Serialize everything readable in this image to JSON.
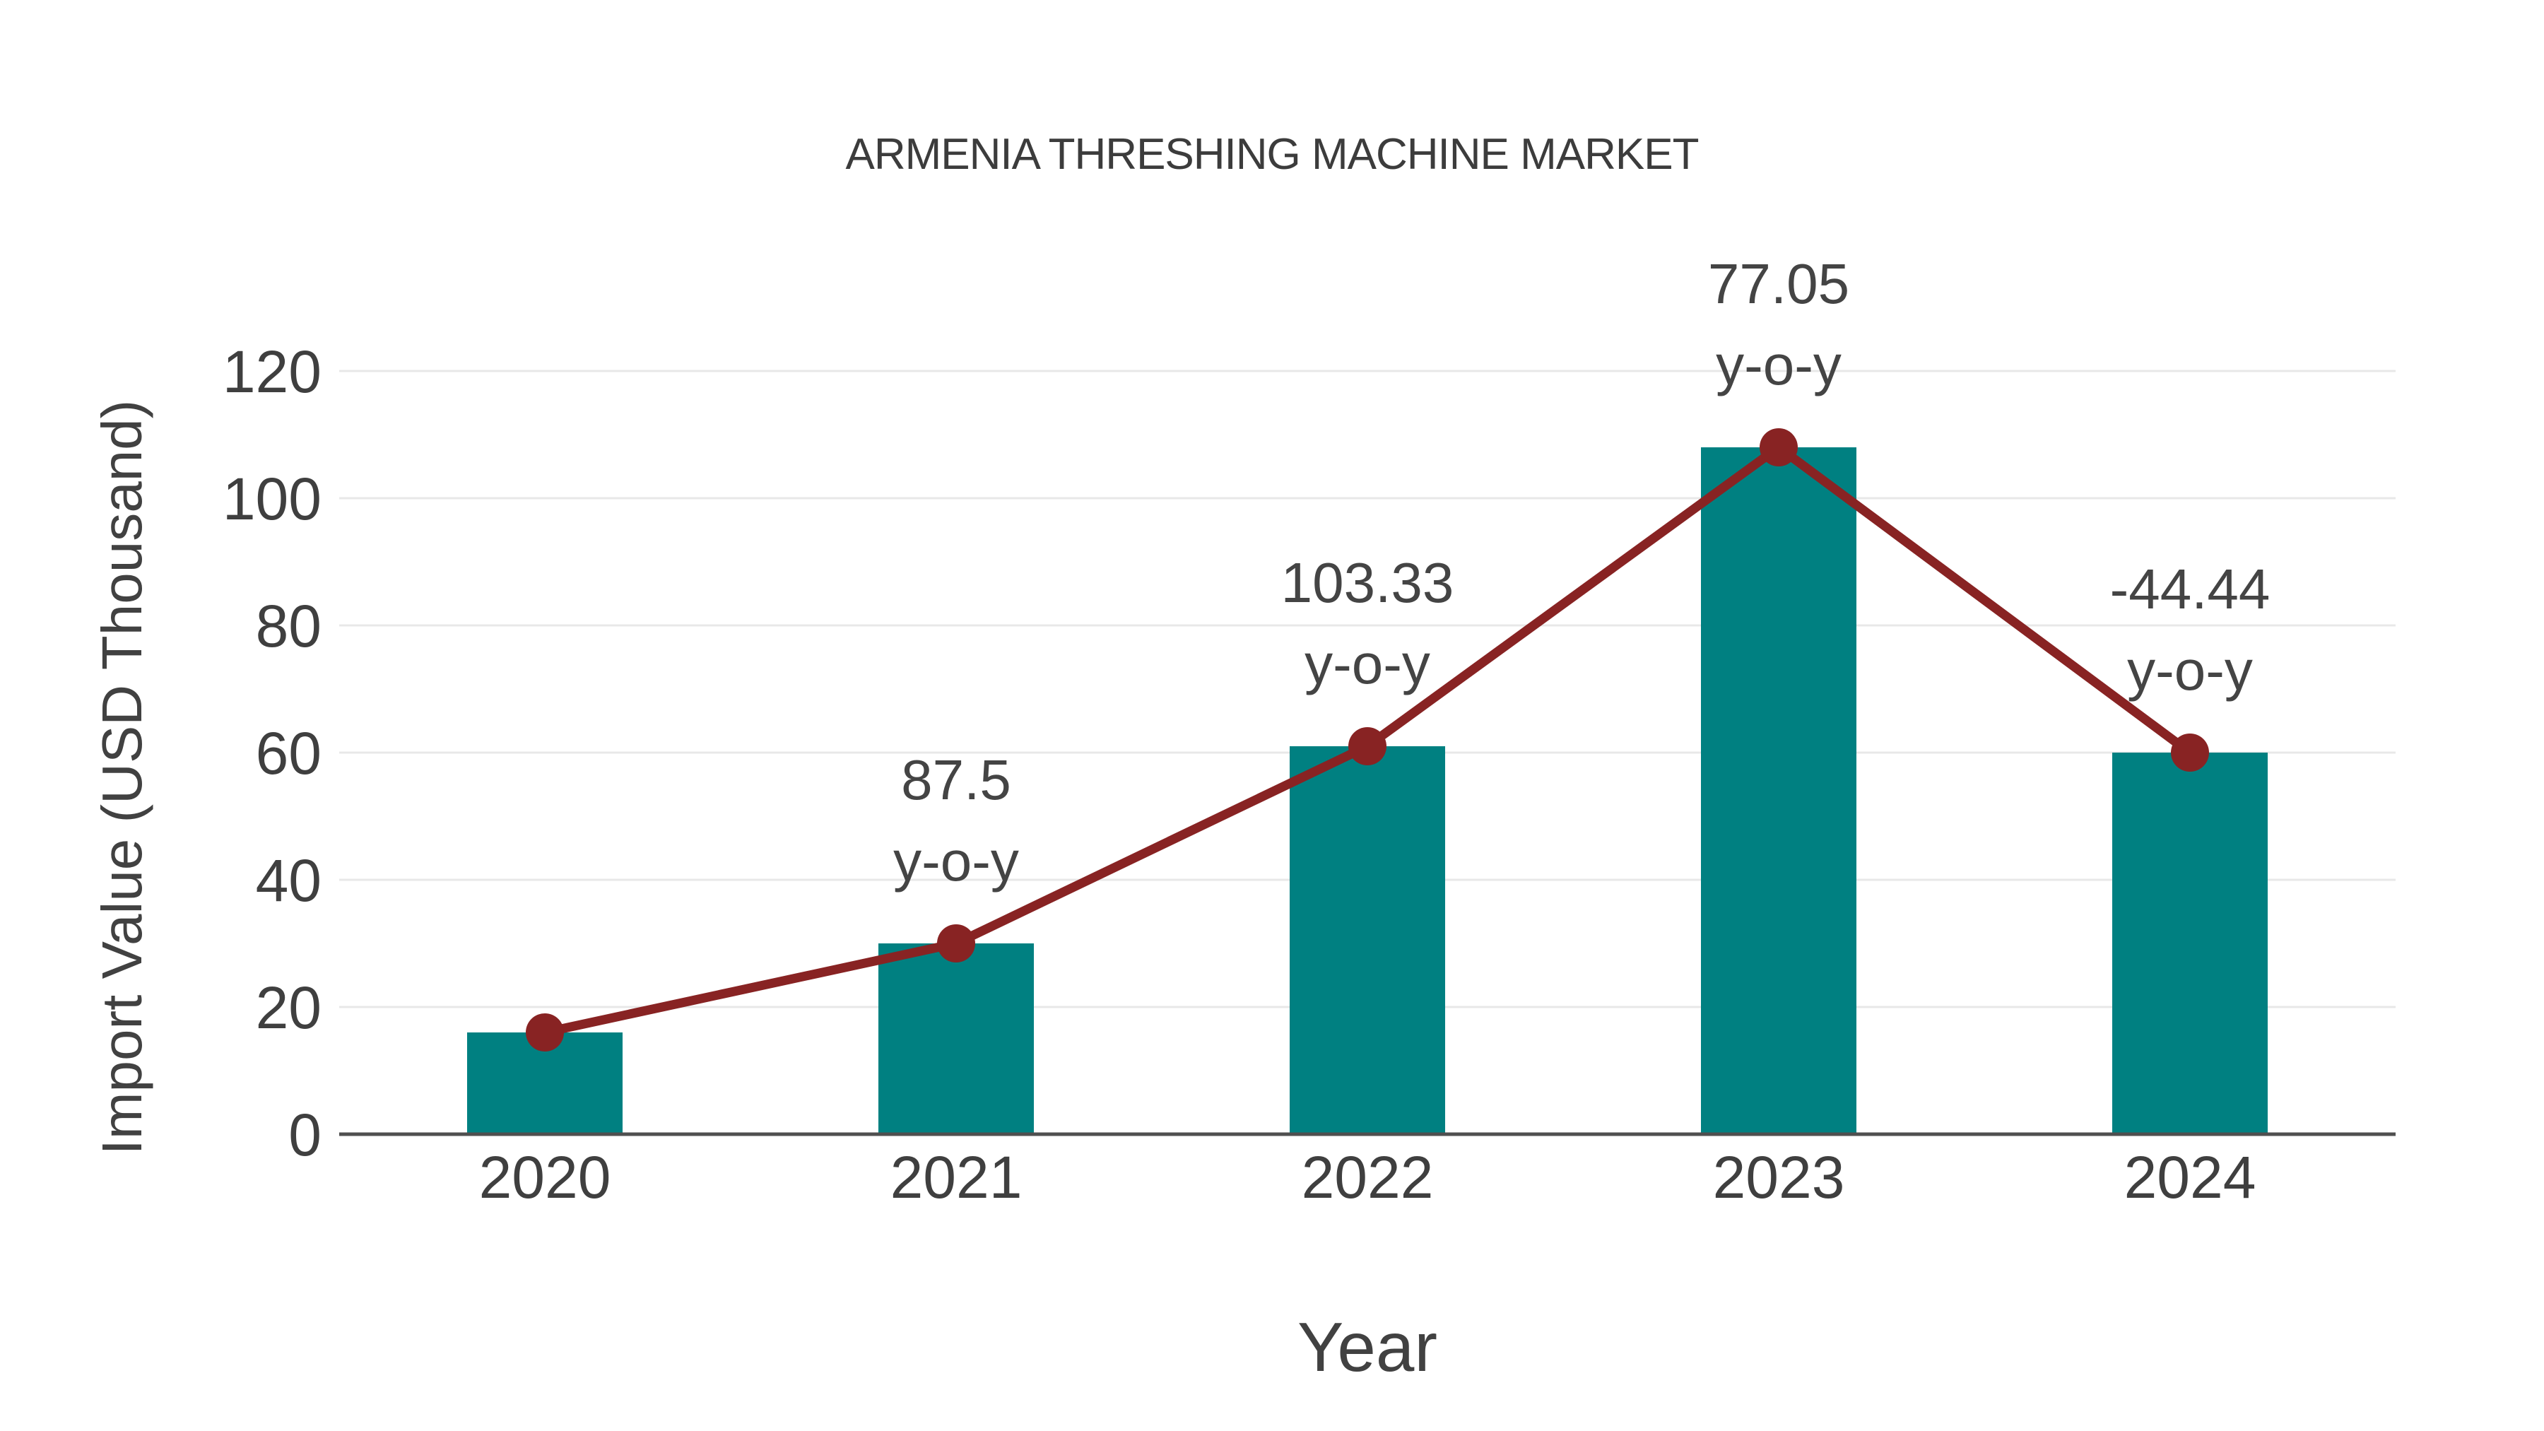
{
  "chart_data": {
    "type": "bar+line",
    "title": "ARMENIA THRESHING MACHINE MARKET",
    "xlabel": "Year",
    "ylabel": "Import Value (USD Thousand)",
    "categories": [
      "2020",
      "2021",
      "2022",
      "2023",
      "2024"
    ],
    "bar_values": [
      16,
      30,
      61,
      108,
      60
    ],
    "line_values": [
      16,
      30,
      61,
      108,
      60
    ],
    "annotations": [
      {
        "category": "2021",
        "value": "87.5",
        "suffix": "y-o-y"
      },
      {
        "category": "2022",
        "value": "103.33",
        "suffix": "y-o-y"
      },
      {
        "category": "2023",
        "value": "77.05",
        "suffix": "y-o-y"
      },
      {
        "category": "2024",
        "value": "-44.44",
        "suffix": "y-o-y"
      }
    ],
    "ylim": [
      0,
      120
    ],
    "yticks": [
      0,
      20,
      40,
      60,
      80,
      100,
      120
    ],
    "grid": true,
    "legend_position": "none",
    "colors": {
      "bar": "#008081",
      "line": "#882323",
      "marker": "#882323",
      "grid": "#e8e8e8",
      "axis": "#4f4f4f",
      "text": "#3f3f3f"
    }
  }
}
